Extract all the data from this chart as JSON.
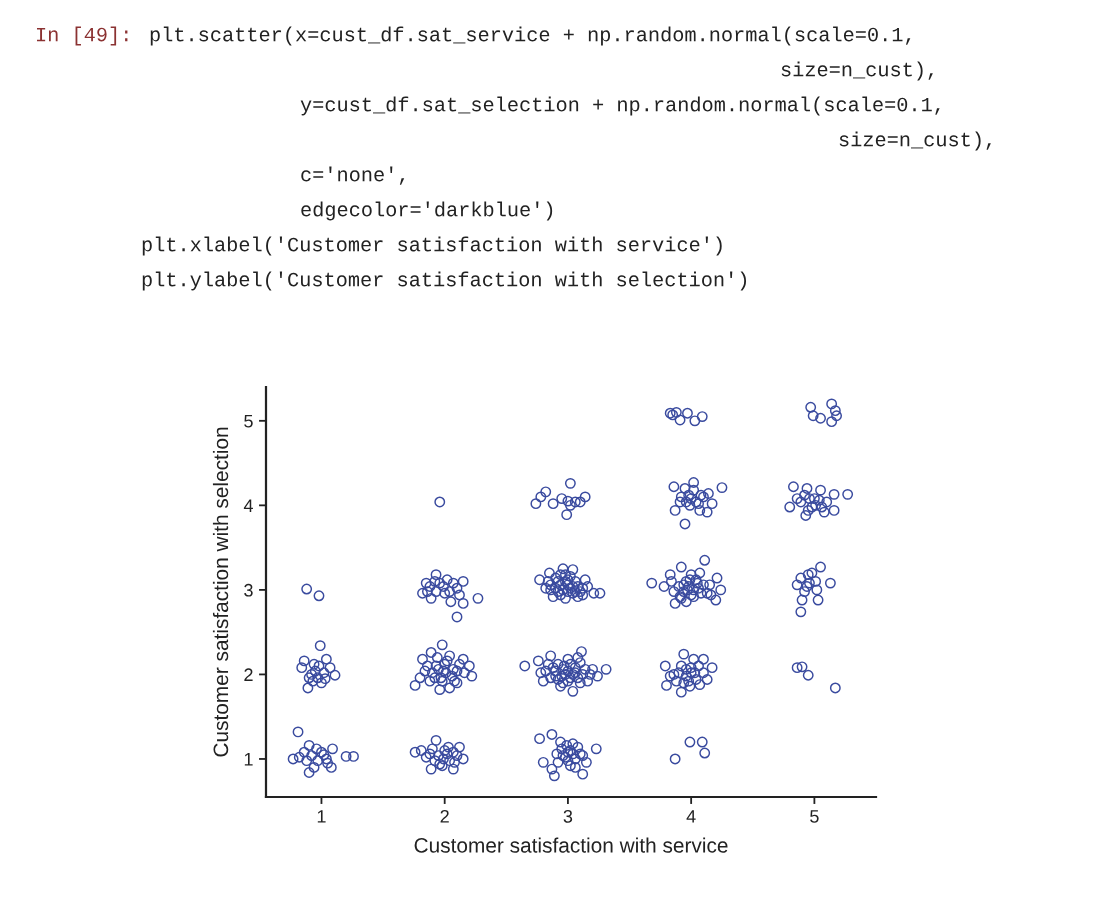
{
  "chart_data": {
    "type": "scatter",
    "xlabel": "Customer satisfaction with service",
    "ylabel": "Customer satisfaction with selection",
    "annotations": [
      "In [49]:",
      "plt.scatter(x=cust_df.sat_service + np.random.normal(scale=0.1,",
      "size=n_cust),",
      "y=cust_df.sat_selection + np.random.normal(scale=0.1,",
      "size=n_cust),",
      "c='none',",
      "edgecolor='darkblue')",
      "plt.xlabel('Customer satisfaction with service')",
      "plt.ylabel('Customer satisfaction with selection')"
    ],
    "x": [
      0.81,
      0.77,
      0.82,
      0.9,
      0.9,
      0.94,
      1.0,
      1.04,
      1.09,
      1.08,
      1.2,
      1.26,
      0.86,
      0.97,
      0.99,
      0.84,
      0.86,
      1.04,
      1.11,
      0.89,
      0.93,
      0.98,
      1.07,
      0.92,
      0.97,
      1.0,
      0.88,
      0.98,
      1.93,
      1.76,
      1.81,
      1.88,
      1.89,
      1.99,
      2.07,
      2.15,
      2.07,
      1.96,
      2.03,
      2.12,
      1.98,
      1.76,
      1.82,
      1.89,
      2.04,
      2.15,
      2.2,
      2.22,
      2.1,
      1.96,
      1.88,
      1.84,
      1.93,
      2.01,
      2.07,
      1.97,
      2.04,
      1.85,
      1.93,
      1.82,
      1.89,
      1.99,
      2.07,
      2.15,
      2.04,
      2.05,
      2.15,
      2.27,
      2.1,
      1.93,
      1.96,
      2.77,
      2.87,
      2.8,
      2.87,
      2.89,
      2.99,
      2.96,
      3.06,
      3.02,
      2.91,
      3.04,
      3.23,
      3.12,
      3.1,
      3.15,
      3.0,
      2.65,
      2.76,
      2.82,
      2.8,
      2.86,
      2.92,
      2.9,
      2.96,
      2.94,
      3.0,
      3.02,
      3.06,
      3.04,
      3.1,
      3.12,
      3.11,
      3.16,
      3.2,
      3.24,
      3.31,
      2.98,
      2.88,
      2.77,
      2.85,
      2.96,
      3.04,
      2.82,
      2.88,
      2.94,
      3.0,
      3.06,
      3.12,
      3.08,
      2.98,
      2.9,
      3.02,
      3.14,
      3.21,
      3.26,
      2.92,
      3.04,
      2.86,
      2.74,
      2.78,
      2.82,
      2.88,
      2.95,
      3.02,
      2.99,
      3.02,
      3.06,
      3.1,
      3.14,
      3.0,
      3.87,
      3.99,
      4.09,
      4.11,
      3.94,
      3.79,
      3.83,
      3.8,
      3.92,
      4.02,
      4.1,
      4.17,
      4.13,
      4.07,
      3.99,
      3.96,
      4.03,
      3.9,
      3.88,
      3.68,
      3.78,
      3.83,
      3.92,
      4.11,
      4.21,
      4.24,
      4.2,
      3.87,
      3.97,
      4.05,
      4.02,
      4.13,
      3.91,
      4.07,
      3.99,
      3.86,
      4.15,
      3.94,
      3.86,
      4.02,
      4.25,
      3.95,
      4.02,
      4.14,
      3.91,
      3.99,
      4.07,
      3.87,
      4.17,
      4.13,
      3.95,
      4.1,
      3.96,
      4.04,
      3.83,
      3.88,
      3.91,
      3.97,
      4.03,
      4.09,
      3.85,
      4.86,
      4.9,
      4.95,
      5.17,
      5.05,
      4.89,
      4.95,
      5.01,
      5.13,
      4.94,
      5.02,
      4.86,
      5.03,
      4.9,
      4.89,
      4.83,
      4.94,
      5.05,
      5.16,
      5.27,
      4.8,
      4.89,
      4.95,
      5.01,
      5.08,
      5.16,
      4.93,
      5.0,
      4.97,
      5.14,
      4.99,
      5.05,
      5.18,
      5.14,
      5.17,
      0.92,
      1.02,
      0.96,
      1.05,
      0.88,
      0.95,
      1.02,
      0.9,
      0.94,
      1.03,
      1.95,
      2.0,
      2.04,
      1.92,
      2.1,
      1.98,
      2.08,
      1.9,
      2.02,
      1.85,
      1.9,
      1.95,
      2.0,
      1.92,
      2.06,
      2.1,
      1.98,
      2.02,
      1.86,
      2.12,
      1.94,
      2.08,
      1.8,
      2.16,
      1.99,
      1.88,
      1.96,
      2.0,
      1.92,
      2.1,
      2.02,
      1.86,
      2.12,
      2.95,
      3.0,
      3.04,
      2.92,
      3.08,
      2.98,
      3.06,
      2.94,
      3.12,
      3.02,
      2.9,
      2.95,
      3.0,
      3.04,
      3.08,
      2.97,
      3.02,
      2.92,
      3.06,
      3.14,
      2.86,
      3.0,
      3.1,
      2.84,
      3.08,
      2.96,
      3.18,
      2.78,
      2.9,
      2.96,
      3.0,
      3.04,
      2.94,
      3.08,
      2.98,
      3.1,
      2.86,
      3.02,
      2.92,
      3.06,
      2.98,
      3.16,
      2.84,
      3.12,
      3.0,
      2.94,
      3.96,
      4.0,
      4.04,
      3.92,
      4.06,
      3.98,
      4.1,
      3.86,
      4.0,
      3.94,
      3.94,
      3.98,
      4.02,
      4.06,
      3.9,
      4.0,
      4.08,
      3.96,
      4.04,
      4.1,
      3.92,
      4.0,
      3.84,
      4.16,
      3.96,
      4.0,
      4.06,
      3.92,
      4.08,
      3.98,
      4.96,
      5.04,
      4.92,
      5.1,
      4.98,
      4.86,
      5.06,
      4.96,
      4.98,
      4.92
    ],
    "values": [
      1.32,
      1.0,
      1.02,
      1.16,
      0.84,
      0.9,
      1.08,
      1.0,
      1.12,
      0.9,
      1.03,
      1.03,
      1.08,
      0.98,
      2.34,
      2.08,
      2.16,
      2.18,
      1.99,
      1.84,
      1.92,
      2.1,
      2.08,
      2.0,
      1.96,
      1.9,
      3.01,
      2.93,
      1.22,
      1.08,
      1.1,
      1.06,
      0.88,
      1.0,
      1.08,
      1.0,
      0.88,
      0.94,
      1.14,
      1.14,
      2.35,
      1.87,
      2.18,
      2.26,
      2.22,
      2.18,
      2.1,
      1.98,
      1.9,
      1.82,
      1.92,
      2.04,
      2.1,
      2.02,
      2.06,
      1.96,
      1.84,
      3.08,
      3.18,
      2.96,
      2.9,
      3.04,
      3.08,
      3.1,
      2.98,
      2.86,
      2.84,
      2.9,
      2.68,
      2.98,
      4.04,
      1.24,
      1.29,
      0.96,
      0.88,
      0.8,
      1.16,
      1.04,
      1.0,
      0.92,
      1.06,
      1.18,
      1.12,
      0.82,
      1.06,
      0.96,
      1.08,
      2.1,
      2.16,
      2.04,
      1.92,
      2.22,
      2.12,
      1.98,
      2.06,
      1.86,
      2.18,
      1.96,
      2.08,
      1.8,
      2.14,
      2.0,
      2.27,
      1.92,
      2.06,
      1.98,
      2.06,
      2.0,
      2.08,
      3.12,
      3.2,
      3.25,
      3.24,
      3.02,
      2.92,
      3.06,
      2.98,
      3.1,
      3.02,
      2.92,
      2.9,
      3.14,
      3.16,
      3.12,
      2.96,
      2.96,
      2.98,
      3.04,
      3.06,
      4.02,
      4.1,
      4.16,
      4.02,
      4.08,
      4.26,
      3.89,
      4.0,
      4.04,
      4.04,
      4.1,
      4.05,
      1.0,
      1.2,
      1.2,
      1.07,
      2.24,
      2.1,
      1.98,
      1.87,
      1.79,
      2.18,
      2.18,
      2.08,
      1.94,
      1.88,
      1.86,
      2.06,
      2.02,
      2.02,
      1.92,
      3.08,
      3.04,
      3.18,
      3.27,
      3.35,
      3.14,
      3.0,
      2.88,
      2.84,
      3.0,
      3.08,
      2.92,
      2.96,
      2.92,
      3.2,
      3.12,
      2.98,
      3.06,
      3.06,
      4.22,
      4.27,
      4.21,
      4.2,
      4.18,
      4.14,
      4.04,
      4.0,
      3.94,
      3.94,
      4.02,
      3.92,
      3.78,
      4.1,
      4.04,
      4.04,
      5.09,
      5.1,
      5.01,
      5.09,
      5.0,
      5.05,
      5.07,
      2.08,
      2.09,
      1.99,
      1.84,
      3.27,
      3.14,
      3.18,
      3.1,
      3.08,
      3.04,
      3.0,
      3.06,
      2.88,
      2.88,
      2.74,
      4.22,
      4.2,
      4.18,
      4.13,
      4.13,
      3.98,
      4.04,
      3.94,
      4.0,
      3.92,
      3.94,
      3.88,
      4.08,
      5.16,
      5.2,
      5.06,
      5.03,
      5.06,
      4.99,
      5.12,
      1.04,
      1.05,
      1.12,
      0.95,
      0.98,
      2.04,
      2.02,
      1.96,
      2.12,
      1.95,
      1.04,
      1.1,
      0.98,
      0.98,
      1.04,
      0.92,
      0.96,
      1.12,
      1.06,
      1.02,
      2.02,
      2.06,
      2.12,
      1.96,
      1.98,
      2.04,
      1.92,
      2.16,
      2.1,
      2.12,
      2.2,
      1.92,
      1.96,
      2.02,
      2.04,
      3.04,
      3.08,
      2.96,
      3.1,
      3.02,
      3.12,
      2.98,
      2.94,
      1.12,
      0.98,
      1.06,
      0.96,
      1.14,
      1.02,
      0.9,
      1.2,
      1.04,
      1.1,
      2.04,
      1.98,
      2.04,
      2.0,
      1.96,
      2.1,
      2.12,
      1.94,
      2.02,
      2.06,
      1.96,
      1.92,
      1.9,
      2.12,
      2.2,
      1.9,
      2.0,
      2.02,
      3.02,
      3.0,
      3.06,
      2.96,
      2.94,
      3.04,
      3.1,
      2.98,
      3.0,
      3.02,
      3.1,
      2.98,
      3.18,
      3.04,
      3.1,
      2.94,
      3.12,
      3.18,
      1.98,
      2.08,
      1.94,
      2.1,
      2.1,
      1.92,
      2.02,
      2.0,
      2.02,
      1.9,
      2.98,
      3.04,
      3.0,
      3.02,
      3.04,
      2.94,
      2.96,
      3.1,
      3.12,
      3.06,
      2.9,
      3.18,
      3.1,
      2.94,
      2.86,
      4.08,
      4.02,
      4.1,
      4.12,
      4.12,
      4.08,
      4.06,
      4.12,
      4.04,
      3.98,
      4.08,
      3.98,
      3.08,
      3.2,
      2.98
    ],
    "color": "#3a4b9f",
    "marker": "circle",
    "xlim": [
      0.55,
      5.5
    ],
    "ylim": [
      0.55,
      5.4
    ],
    "xticks": [
      1,
      2,
      3,
      4,
      5
    ],
    "yticks": [
      1,
      2,
      3,
      4,
      5
    ]
  }
}
